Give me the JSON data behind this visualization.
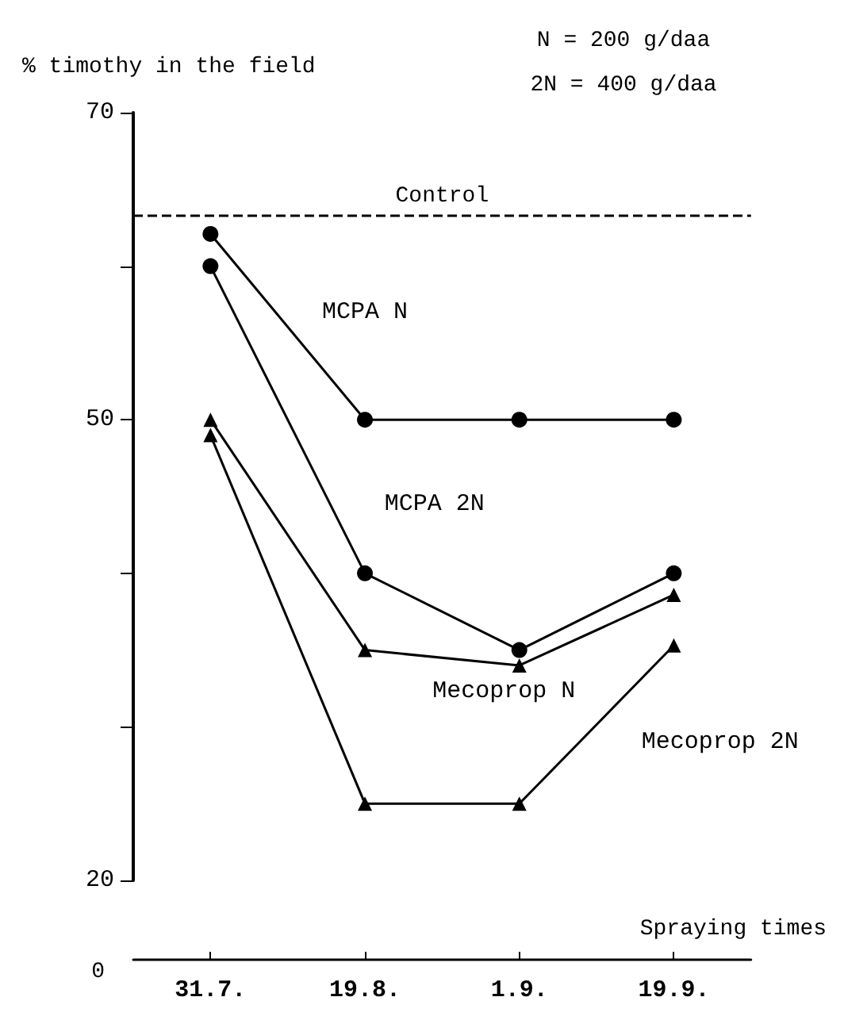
{
  "chart_data": {
    "type": "line",
    "ylabel": "% timothy in the field",
    "xlabel": "Spraying times",
    "categories": [
      "31.7.",
      "19.8.",
      "1.9.",
      "19.9."
    ],
    "ylim": [
      20,
      70
    ],
    "yticks": [
      20,
      {
        "value": 30,
        "label": null
      },
      {
        "value": 40,
        "label": null
      },
      50,
      {
        "value": 60,
        "label": null
      },
      70
    ],
    "series": [
      {
        "name": "MCPA N",
        "color": "#000000",
        "marker": "circle",
        "values": [
          62.1,
          50,
          50,
          50
        ]
      },
      {
        "name": "MCPA 2N",
        "color": "#000000",
        "marker": "circle",
        "values": [
          60,
          40,
          35,
          40
        ]
      },
      {
        "name": "Mecoprop N",
        "color": "#000000",
        "marker": "triangle",
        "values": [
          50,
          35,
          34,
          38.6
        ]
      },
      {
        "name": "Mecoprop 2N",
        "color": "#000000",
        "marker": "triangle",
        "values": [
          49,
          25,
          25,
          35.3
        ]
      }
    ],
    "ref_lines": [
      {
        "axis": "y",
        "value": 63.3,
        "label": "Control",
        "line_style": "dashed",
        "color": "#000000"
      }
    ],
    "annotations": [
      "N = 200 g/daa",
      "2N = 400 g/daa",
      "0"
    ],
    "grid": false,
    "legend": false,
    "line_style": "solid"
  }
}
